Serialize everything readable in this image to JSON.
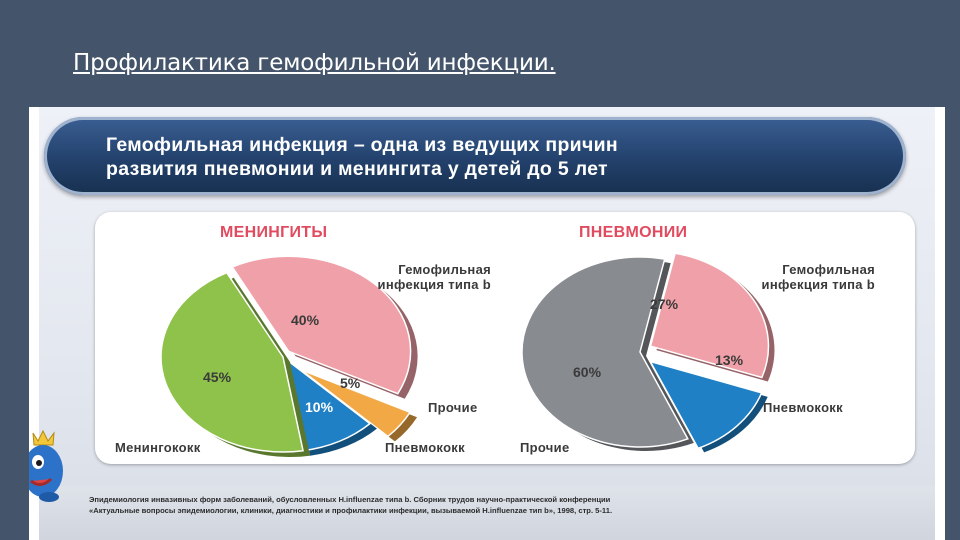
{
  "slide": {
    "title": "Профилактика гемофильной инфекции."
  },
  "banner": {
    "line1": "Гемофильная инфекция – одна из ведущих причин",
    "line2": "развития пневмонии и менингита у детей до 5 лет"
  },
  "footer": {
    "line1": "Эпидемиология инвазивных форм заболеваний, обусловленных H.influenzae типа b. Сборник трудов научно-практической конференции",
    "line2": "«Актуальные вопросы эпидемиологии, клиники, диагностики и профилактики инфекции, вызываемой H.influenzae тип b», 1998, стр. 5-11."
  },
  "colors": {
    "hib": "#f0a0a8",
    "meningococcus": "#8fc24a",
    "pneumococcus": "#1f80c6",
    "other_meningitis": "#f2a945",
    "other_pneumonia": "#888b8f"
  },
  "chart_data": [
    {
      "type": "pie",
      "title": "МЕНИНГИТЫ",
      "slices": [
        {
          "label": "Гемофильная инфекция типа b",
          "value": 40,
          "value_label": "40%"
        },
        {
          "label": "Прочие",
          "value": 5,
          "value_label": "5%"
        },
        {
          "label": "Пневмококк",
          "value": 10,
          "value_label": "10%"
        },
        {
          "label": "Менингококк",
          "value": 45,
          "value_label": "45%"
        }
      ]
    },
    {
      "type": "pie",
      "title": "ПНЕВМОНИИ",
      "slices": [
        {
          "label": "Гемофильная инфекция типа b",
          "value": 27,
          "value_label": "27%"
        },
        {
          "label": "Пневмококк",
          "value": 13,
          "value_label": "13%"
        },
        {
          "label": "Прочие",
          "value": 60,
          "value_label": "60%"
        }
      ]
    }
  ]
}
